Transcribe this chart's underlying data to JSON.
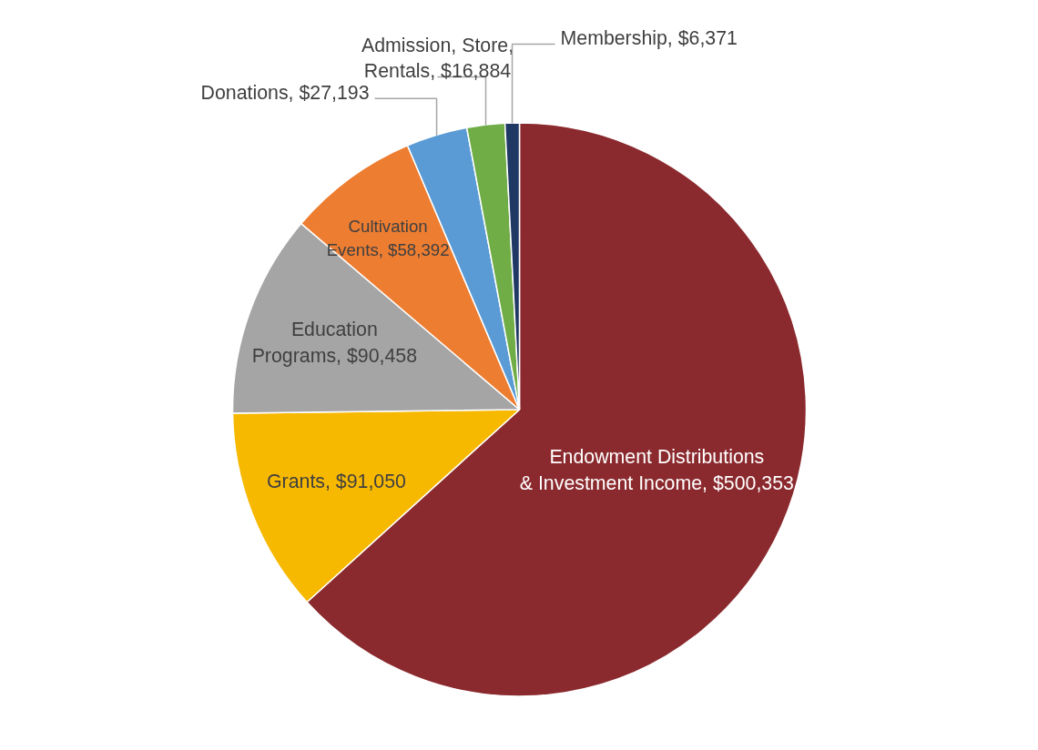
{
  "chart_data": {
    "type": "pie",
    "categories": [
      "Endowment Distributions & Investment Income",
      "Grants",
      "Education Programs",
      "Cultivation Events",
      "Donations",
      "Admission, Store, Rentals",
      "Membership"
    ],
    "values": [
      500353,
      91050,
      90458,
      58392,
      27193,
      16884,
      6371
    ],
    "value_labels": [
      "$500,353",
      "$91,050",
      "$90,458",
      "$58,392",
      "$27,193",
      "$16,884",
      "$6,371"
    ],
    "colors": [
      "#8b2a2e",
      "#f7b800",
      "#a5a5a5",
      "#ed7d31",
      "#5b9bd5",
      "#70ad47",
      "#1f3864"
    ],
    "legend": false
  }
}
